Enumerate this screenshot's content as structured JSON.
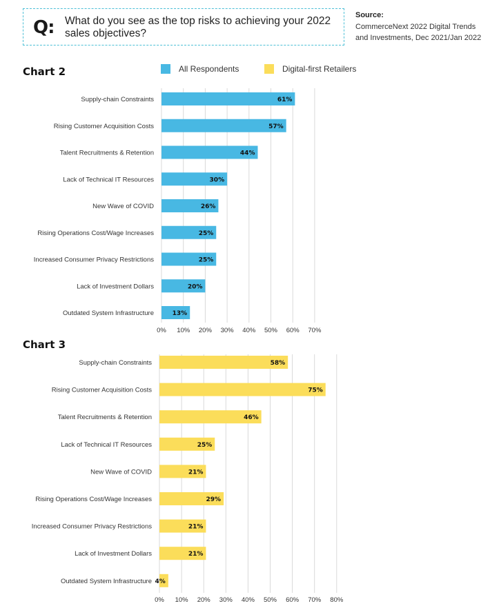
{
  "header": {
    "q_icon": "Q:",
    "question": "What do you see as the top risks to achieving your 2022 sales objectives?",
    "source_label": "Source:",
    "source_text": "CommerceNext 2022 Digital Trends and Investments, Dec 2021/Jan 2022"
  },
  "legend": [
    {
      "label": "All Respondents",
      "color": "#48b8e3"
    },
    {
      "label": "Digital-first Retailers",
      "color": "#fbdd5a"
    }
  ],
  "chart_data": [
    {
      "type": "bar",
      "orientation": "horizontal",
      "title": "Chart 2",
      "series": [
        {
          "name": "All Respondents",
          "values": [
            61,
            57,
            44,
            30,
            26,
            25,
            25,
            20,
            13
          ],
          "color": "#48b8e3"
        }
      ],
      "categories": [
        "Supply-chain Constraints",
        "Rising Customer Acquisition Costs",
        "Talent Recruitments & Retention",
        "Lack of Technical IT Resources",
        "New Wave of COVID",
        "Rising Operations Cost/Wage Increases",
        "Increased Consumer Privacy Restrictions",
        "Lack of Investment Dollars",
        "Outdated System Infrastructure"
      ],
      "value_labels": [
        "61%",
        "57%",
        "44%",
        "30%",
        "26%",
        "25%",
        "25%",
        "20%",
        "13%"
      ],
      "xlim": [
        0,
        70
      ],
      "xticks": [
        "0%",
        "10%",
        "20%",
        "30%",
        "40%",
        "50%",
        "60%",
        "70%"
      ],
      "grid": true
    },
    {
      "type": "bar",
      "orientation": "horizontal",
      "title": "Chart 3",
      "series": [
        {
          "name": "Digital-first Retailers",
          "values": [
            58,
            75,
            46,
            25,
            21,
            29,
            21,
            21,
            4
          ],
          "color": "#fbdd5a"
        }
      ],
      "categories": [
        "Supply-chain Constraints",
        "Rising Customer Acquisition Costs",
        "Talent Recruitments & Retention",
        "Lack of Technical IT Resources",
        "New Wave of COVID",
        "Rising Operations Cost/Wage Increases",
        "Increased Consumer Privacy Restrictions",
        "Lack of Investment Dollars",
        "Outdated System Infrastructure"
      ],
      "value_labels": [
        "58%",
        "75%",
        "46%",
        "25%",
        "21%",
        "29%",
        "21%",
        "21%",
        "4%"
      ],
      "xlim": [
        0,
        80
      ],
      "xticks": [
        "0%",
        "10%",
        "20%",
        "30%",
        "40%",
        "50%",
        "60%",
        "70%",
        "80%"
      ],
      "grid": true
    }
  ]
}
